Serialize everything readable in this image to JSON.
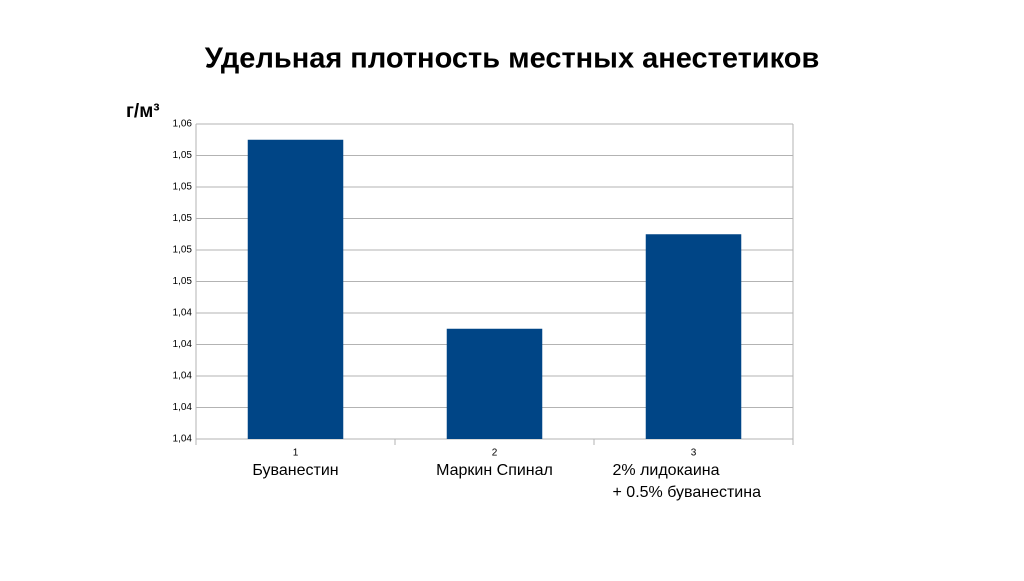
{
  "chart_data": {
    "type": "bar",
    "title": "Удельная плотность местных анестетиков",
    "y_unit": "г/м³",
    "categories": [
      "1",
      "2",
      "3"
    ],
    "category_names": [
      [
        "Буванестин"
      ],
      [
        "Маркин Спинал"
      ],
      [
        "2%  лидокаина",
        "+ 0.5%  буванестина"
      ]
    ],
    "values": [
      1.055,
      1.043,
      1.049
    ],
    "color": "#004586",
    "ylim": [
      1.036,
      1.056
    ],
    "yticks": [
      {
        "value": 1.036,
        "label": "1,04"
      },
      {
        "value": 1.038,
        "label": "1,04"
      },
      {
        "value": 1.04,
        "label": "1,04"
      },
      {
        "value": 1.042,
        "label": "1,04"
      },
      {
        "value": 1.044,
        "label": "1,04"
      },
      {
        "value": 1.046,
        "label": "1,05"
      },
      {
        "value": 1.048,
        "label": "1,05"
      },
      {
        "value": 1.05,
        "label": "1,05"
      },
      {
        "value": 1.052,
        "label": "1,05"
      },
      {
        "value": 1.054,
        "label": "1,05"
      },
      {
        "value": 1.056,
        "label": "1,06"
      }
    ],
    "grid": true
  }
}
